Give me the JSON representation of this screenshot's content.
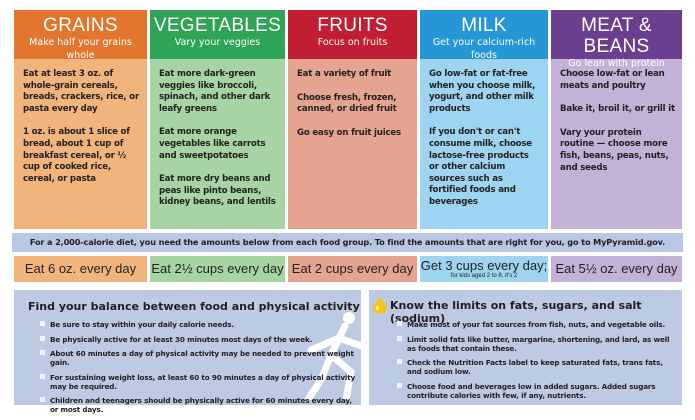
{
  "groups": [
    {
      "title": "GRAINS",
      "subtitle": "Make half your grains whole",
      "header_color": "#e3762f",
      "body_color": "#f2b47d",
      "tips": [
        "Eat at least 3 oz. of whole-grain cereals, breads, crackers, rice, or pasta every day",
        "1 oz. is about 1 slice of bread, about 1 cup of breakfast cereal, or ½ cup of cooked rice, cereal, or pasta"
      ],
      "amount": "Eat 6 oz. every day",
      "amount_note": ""
    },
    {
      "title": "VEGETABLES",
      "subtitle": "Vary your veggies",
      "header_color": "#2fa457",
      "body_color": "#a7d4a4",
      "tips": [
        "Eat more dark-green veggies like broccoli, spinach, and other dark leafy greens",
        "Eat more orange vegetables like carrots and sweetpotatoes",
        "Eat more dry beans and peas like pinto beans, kidney beans, and lentils"
      ],
      "amount": "Eat 2½ cups every day",
      "amount_note": ""
    },
    {
      "title": "FRUITS",
      "subtitle": "Focus on fruits",
      "header_color": "#c01f33",
      "body_color": "#e4a48f",
      "tips": [
        "Eat a variety of fruit",
        "Choose fresh, frozen, canned, or dried fruit",
        "Go easy on fruit juices"
      ],
      "amount": "Eat 2 cups every day",
      "amount_note": ""
    },
    {
      "title": "MILK",
      "subtitle": "Get your calcium-rich foods",
      "header_color": "#2597d6",
      "body_color": "#9dd4f2",
      "tips": [
        "Go low-fat or fat-free when you choose milk, yogurt, and other milk products",
        "If you don't or can't consume milk, choose lactose-free products or other calcium sources such as fortified foods and beverages"
      ],
      "amount": "Get 3 cups every day;",
      "amount_note": "for kids aged 2 to 8, it's 2"
    },
    {
      "title": "MEAT & BEANS",
      "subtitle": "Go lean with protein",
      "header_color": "#6b3f8f",
      "body_color": "#c4b1d7",
      "tips": [
        "Choose low-fat or lean meats and poultry",
        "Bake it, broil it, or grill it",
        "Vary your protein routine — choose more fish, beans, peas, nuts, and seeds"
      ],
      "amount": "Eat 5½ oz. every day",
      "amount_note": ""
    }
  ],
  "banner": "For a 2,000-calorie diet, you need the amounts below from each food group. To find the amounts that are right for you, go to MyPyramid.gov.",
  "balance": {
    "title": "Find your balance between food and physical activity",
    "icon": "running-figure-icon",
    "items": [
      "Be sure to stay within your daily calorie needs.",
      "Be physically active for at least 30 minutes most days of the week.",
      "About 60 minutes a day of physical activity may be needed to prevent weight gain.",
      "For sustaining weight loss, at least 60 to 90 minutes a day of physical activity may be required.",
      "Children and teenagers should be physically active for 60 minutes every day, or most days."
    ]
  },
  "limits": {
    "title": "Know the limits on fats, sugars, and salt (sodium)",
    "icon": "oil-drop-icon",
    "icon_color": "#f5c518",
    "items": [
      "Make most of your fat sources from fish, nuts, and vegetable oils.",
      "Limit solid fats like butter, margarine, shortening, and lard, as well as foods that contain these.",
      "Check the Nutrition Facts label to keep saturated fats, trans fats, and sodium low.",
      "Choose food and beverages low in added sugars. Added sugars contribute calories with few, if any, nutrients."
    ]
  }
}
